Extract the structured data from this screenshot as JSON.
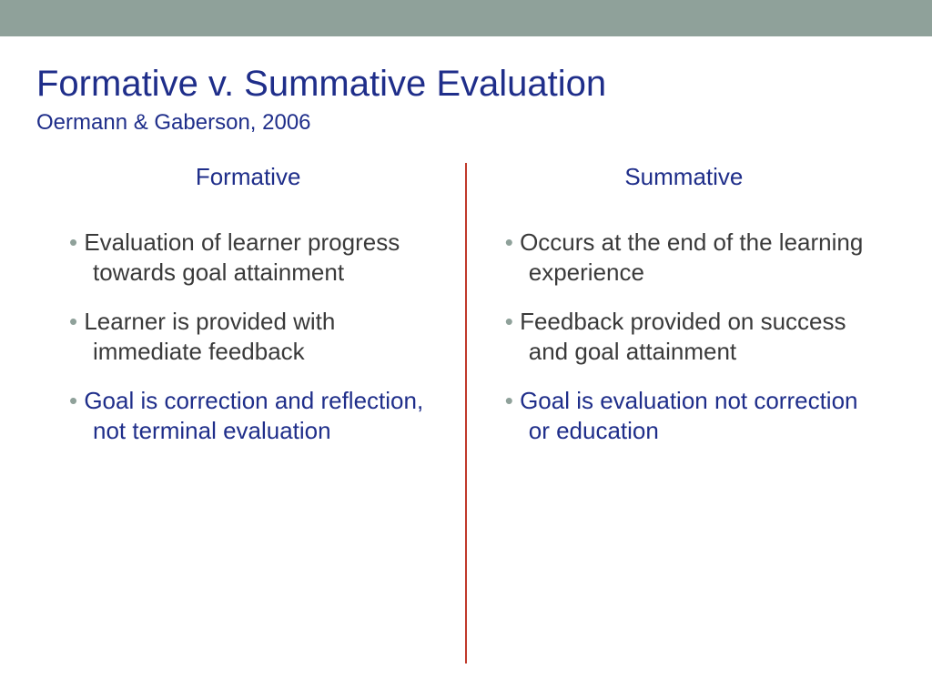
{
  "colors": {
    "top_bar": "#8fa19a",
    "title": "#1f2e8a",
    "subtitle": "#1f2e8a",
    "col_heading": "#1f2e8a",
    "bullet_marker": "#8fa19a",
    "body_text_dark": "#3a3a3a",
    "body_text_blue": "#1f2e8a",
    "divider": "#c0392b",
    "background": "#ffffff"
  },
  "header": {
    "title": "Formative v. Summative Evaluation",
    "subtitle": "Oermann & Gaberson, 2006"
  },
  "left": {
    "heading": "Formative",
    "items": [
      {
        "text": "Evaluation of learner progress towards goal attainment",
        "color": "body_text_dark"
      },
      {
        "text": "Learner is provided with immediate feedback",
        "color": "body_text_dark"
      },
      {
        "text": "Goal is correction and reflection, not terminal evaluation",
        "color": "body_text_blue"
      }
    ]
  },
  "right": {
    "heading": "Summative",
    "items": [
      {
        "text": "Occurs at the end of the learning experience",
        "color": "body_text_dark"
      },
      {
        "text": "Feedback provided on success and goal attainment",
        "color": "body_text_dark"
      },
      {
        "text": "Goal is evaluation not correction or education",
        "color": "body_text_blue"
      }
    ]
  }
}
